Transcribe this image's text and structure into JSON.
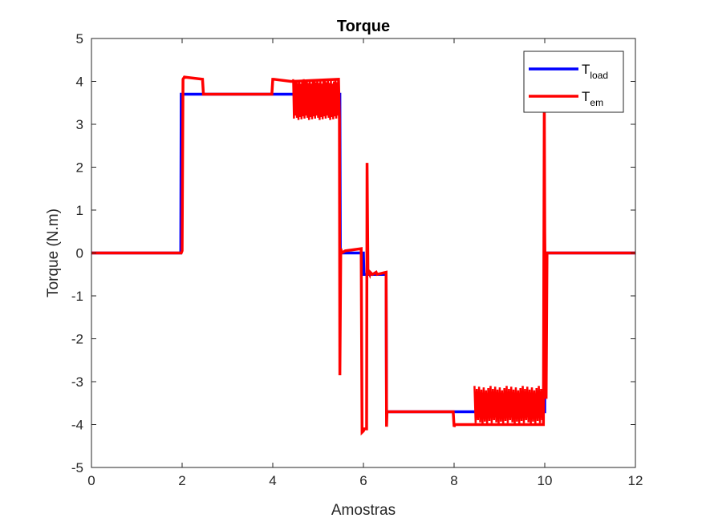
{
  "chart_data": {
    "type": "line",
    "title": "Torque",
    "xlabel": "Amostras",
    "ylabel": "Torque (N.m)",
    "xlim": [
      0,
      12
    ],
    "ylim": [
      -5,
      5
    ],
    "xticks": [
      0,
      2,
      4,
      6,
      8,
      10,
      12
    ],
    "yticks": [
      -5,
      -4,
      -3,
      -2,
      -1,
      0,
      1,
      2,
      3,
      4,
      5
    ],
    "xtick_labels": [
      "0",
      "2",
      "4",
      "6",
      "8",
      "10",
      "12"
    ],
    "ytick_labels": [
      "-5",
      "-4",
      "-3",
      "-2",
      "-1",
      "0",
      "1",
      "2",
      "3",
      "4",
      "5"
    ],
    "grid": false,
    "legend_position": "top-right",
    "series": [
      {
        "name_main": "T",
        "name_sub": "load",
        "color": "#0000ff",
        "x": [
          0,
          1.97,
          1.98,
          4.45,
          4.46,
          5.48,
          5.49,
          6.0,
          6.01,
          6.5,
          6.51,
          8.5,
          8.51,
          10.0,
          10.01,
          12.0
        ],
        "y": [
          0,
          0,
          3.7,
          3.7,
          3.7,
          3.7,
          0,
          0,
          -0.5,
          -0.5,
          -3.7,
          -3.7,
          -3.7,
          -3.7,
          0,
          0
        ]
      },
      {
        "name_main": "T",
        "name_sub": "em",
        "color": "#ff0000",
        "x": [
          0,
          1.98,
          2.0,
          2.02,
          2.05,
          2.45,
          2.47,
          3.98,
          4.0,
          4.02,
          4.4,
          4.45,
          5.45,
          5.47,
          5.48,
          5.5,
          5.52,
          5.6,
          5.95,
          5.97,
          6.0,
          6.02,
          6.07,
          6.08,
          6.1,
          6.12,
          6.14,
          6.15,
          6.2,
          6.28,
          6.3,
          6.5,
          6.51,
          6.52,
          6.54,
          7.98,
          8.0,
          8.02,
          8.45,
          8.5,
          9.97,
          9.99,
          10.0,
          10.03,
          10.05,
          10.07,
          10.08,
          12.0
        ],
        "y": [
          0,
          0,
          0.05,
          4.05,
          4.1,
          4.05,
          3.7,
          3.7,
          4.05,
          4.05,
          4.0,
          4.0,
          4.05,
          3.1,
          -2.85,
          0.1,
          0.0,
          0.05,
          0.1,
          -4.18,
          -4.15,
          -4.1,
          -4.1,
          2.1,
          -0.5,
          -0.45,
          -0.5,
          -0.45,
          -0.5,
          -0.45,
          -0.5,
          -0.45,
          -4.05,
          -3.7,
          -3.7,
          -3.7,
          -4.05,
          -4.0,
          -4.0,
          -4.0,
          -4.0,
          3.6,
          0.5,
          -3.4,
          0.0,
          0.0,
          0.0,
          0.0
        ]
      }
    ],
    "noise_bands": [
      {
        "series": 1,
        "x_start": 4.45,
        "x_end": 5.45,
        "y_low": 3.1,
        "y_high": 4.05
      },
      {
        "series": 1,
        "x_start": 8.45,
        "x_end": 9.97,
        "y_low": -4.0,
        "y_high": -3.1
      }
    ]
  }
}
